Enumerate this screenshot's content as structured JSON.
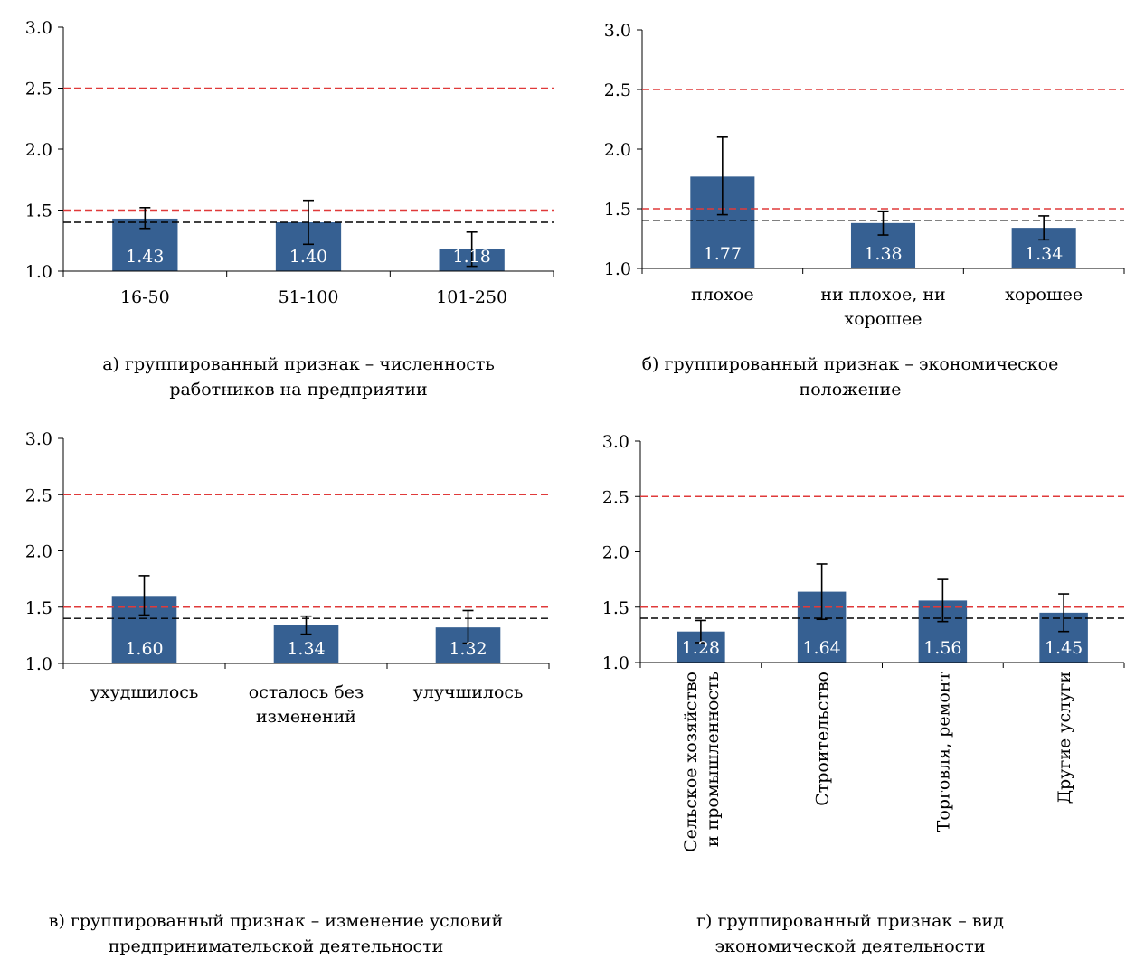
{
  "charts": [
    {
      "caption_lines": [
        "а) группированный признак – численность",
        "работников на предприятии"
      ]
    },
    {
      "caption_lines": [
        "б) группированный признак – экономическое",
        "положение"
      ]
    },
    {
      "caption_lines": [
        "в) группированный признак – изменение условий",
        "предпринимательской деятельности"
      ]
    },
    {
      "caption_lines": [
        "г) группированный признак – вид",
        "экономической деятельности"
      ]
    }
  ],
  "chart_data": [
    {
      "type": "bar",
      "categories": [
        "16-50",
        "51-100",
        "101-250"
      ],
      "category_label_lines": [
        [
          "16-50"
        ],
        [
          "51-100"
        ],
        [
          "101-250"
        ]
      ],
      "values": [
        1.43,
        1.4,
        1.18
      ],
      "value_labels": [
        "1.43",
        "1.40",
        "1.18"
      ],
      "error_low": [
        1.35,
        1.22,
        1.04
      ],
      "error_high": [
        1.52,
        1.58,
        1.32
      ],
      "ylim": [
        1.0,
        3.0
      ],
      "yticks": [
        "1.0",
        "1.5",
        "2.0",
        "2.5",
        "3.0"
      ],
      "reference_lines": [
        {
          "y": 2.5,
          "color": "#e03a3a"
        },
        {
          "y": 1.5,
          "color": "#e03a3a"
        },
        {
          "y": 1.4,
          "color": "#000000"
        }
      ],
      "bar_color": "#366092",
      "xlabel": "",
      "ylabel": ""
    },
    {
      "type": "bar",
      "categories": [
        "плохое",
        "ни плохое, ни хорошее",
        "хорошее"
      ],
      "category_label_lines": [
        [
          "плохое"
        ],
        [
          "ни плохое, ни",
          "хорошее"
        ],
        [
          "хорошее"
        ]
      ],
      "values": [
        1.77,
        1.38,
        1.34
      ],
      "value_labels": [
        "1.77",
        "1.38",
        "1.34"
      ],
      "error_low": [
        1.45,
        1.28,
        1.24
      ],
      "error_high": [
        2.1,
        1.48,
        1.44
      ],
      "ylim": [
        1.0,
        3.0
      ],
      "yticks": [
        "1.0",
        "1.5",
        "2.0",
        "2.5",
        "3.0"
      ],
      "reference_lines": [
        {
          "y": 2.5,
          "color": "#e03a3a"
        },
        {
          "y": 1.5,
          "color": "#e03a3a"
        },
        {
          "y": 1.4,
          "color": "#000000"
        }
      ],
      "bar_color": "#366092",
      "xlabel": "",
      "ylabel": ""
    },
    {
      "type": "bar",
      "categories": [
        "ухудшилось",
        "осталось без изменений",
        "улучшилось"
      ],
      "category_label_lines": [
        [
          "ухудшилось"
        ],
        [
          "осталось без",
          "изменений"
        ],
        [
          "улучшилось"
        ]
      ],
      "values": [
        1.6,
        1.34,
        1.32
      ],
      "value_labels": [
        "1.60",
        "1.34",
        "1.32"
      ],
      "error_low": [
        1.43,
        1.26,
        1.18
      ],
      "error_high": [
        1.78,
        1.42,
        1.47
      ],
      "ylim": [
        1.0,
        3.0
      ],
      "yticks": [
        "1.0",
        "1.5",
        "2.0",
        "2.5",
        "3.0"
      ],
      "reference_lines": [
        {
          "y": 2.5,
          "color": "#e03a3a"
        },
        {
          "y": 1.5,
          "color": "#e03a3a"
        },
        {
          "y": 1.4,
          "color": "#000000"
        }
      ],
      "bar_color": "#366092",
      "xlabel": "",
      "ylabel": ""
    },
    {
      "type": "bar",
      "categories": [
        "Сельское хозяйство и промышленность",
        "Строительство",
        "Торговля, ремонт",
        "Другие услуги"
      ],
      "category_label_lines": [
        [
          "Сельское хозяйство",
          "и промышленность"
        ],
        [
          "Строительство"
        ],
        [
          "Торговля, ремонт"
        ],
        [
          "Другие услуги"
        ]
      ],
      "category_label_rotation": "vertical",
      "values": [
        1.28,
        1.64,
        1.56,
        1.45
      ],
      "value_labels": [
        "1.28",
        "1.64",
        "1.56",
        "1.45"
      ],
      "error_low": [
        1.18,
        1.39,
        1.37,
        1.28
      ],
      "error_high": [
        1.38,
        1.89,
        1.75,
        1.62
      ],
      "ylim": [
        1.0,
        3.0
      ],
      "yticks": [
        "1.0",
        "1.5",
        "2.0",
        "2.5",
        "3.0"
      ],
      "reference_lines": [
        {
          "y": 2.5,
          "color": "#e03a3a"
        },
        {
          "y": 1.5,
          "color": "#e03a3a"
        },
        {
          "y": 1.4,
          "color": "#000000"
        }
      ],
      "bar_color": "#366092",
      "xlabel": "",
      "ylabel": ""
    }
  ]
}
